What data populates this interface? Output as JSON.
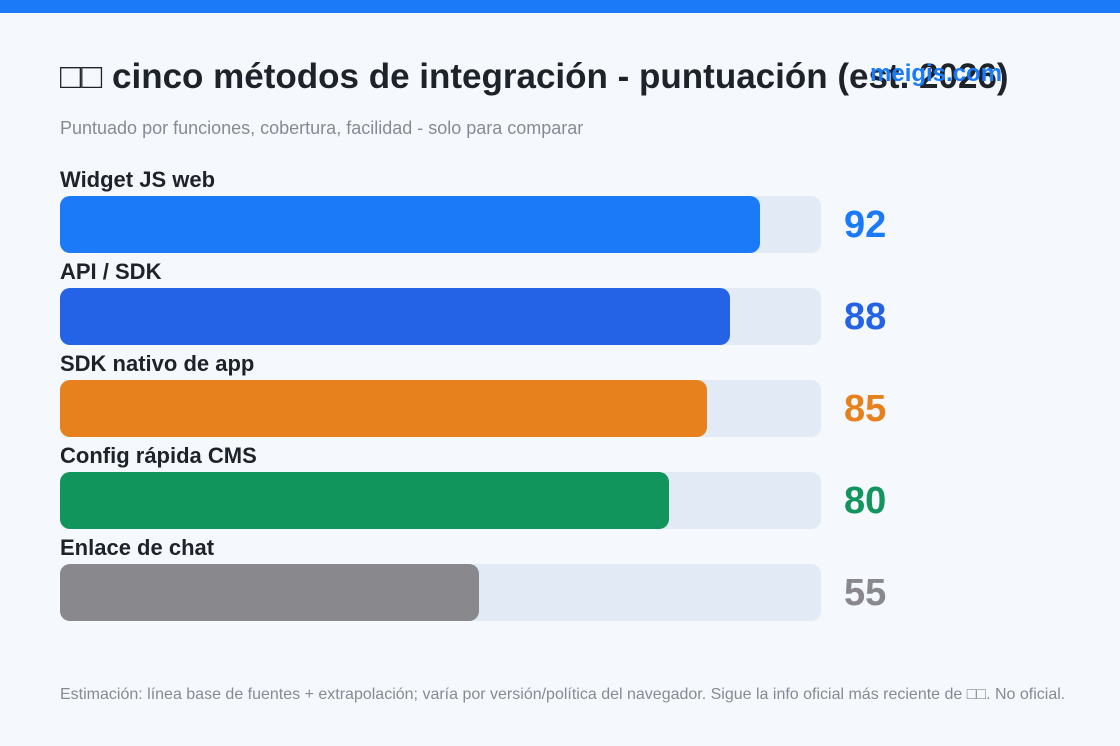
{
  "header": {
    "title": "□□ cinco métodos de integración - puntuación (est. 2026)",
    "brand": "meigis.com",
    "subtitle": "Puntuado por funciones, cobertura, facilidad - solo para comparar"
  },
  "colors": {
    "top_bar": "#1a7af8",
    "track": "#e2eaf5",
    "text": "#1e2229",
    "muted": "#868b93"
  },
  "chart_data": {
    "type": "bar",
    "orientation": "horizontal",
    "categories": [
      "Widget JS web",
      "API / SDK",
      "SDK nativo de app",
      "Config rápida CMS",
      "Enlace de chat"
    ],
    "values": [
      92,
      88,
      85,
      80,
      55
    ],
    "colors": [
      "#1a7af8",
      "#2563e6",
      "#e6811e",
      "#12955c",
      "#88888d"
    ],
    "xlim": [
      0,
      100
    ],
    "grid": false,
    "legend": "none",
    "title": "□□ cinco métodos de integración - puntuación (est. 2026)",
    "subtitle": "Puntuado por funciones, cobertura, facilidad - solo para comparar"
  },
  "footnote": "Estimación: línea base de fuentes + extrapolación; varía por versión/política del navegador. Sigue la info oficial más reciente de □□. No oficial."
}
